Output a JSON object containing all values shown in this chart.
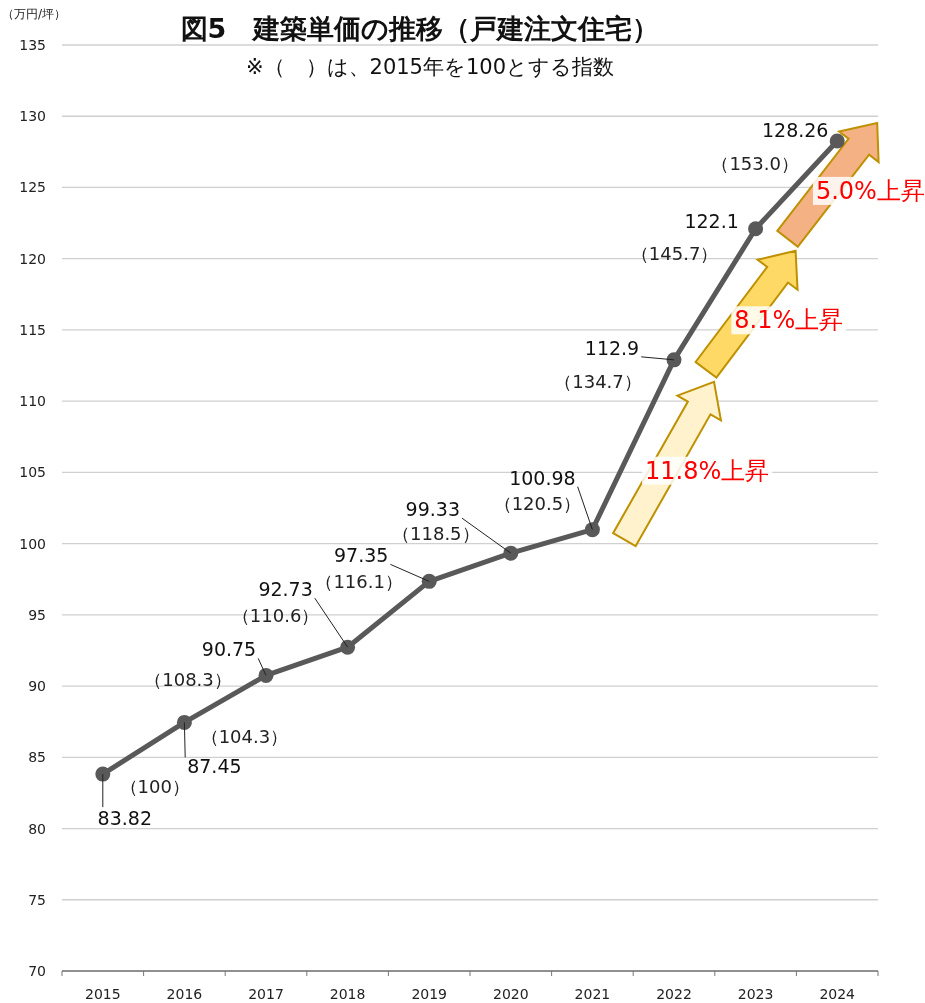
{
  "chart_data": {
    "type": "line",
    "title": "図5　建築単価の推移（戸建注文住宅）",
    "subtitle": "※（　）は、2015年を100とする指数",
    "ylabel": "（万円/坪）",
    "categories": [
      "2015",
      "2016",
      "2017",
      "2018",
      "2019",
      "2020",
      "2021",
      "2022",
      "2023",
      "2024"
    ],
    "values": [
      83.82,
      87.45,
      90.75,
      92.73,
      97.35,
      99.33,
      100.98,
      112.9,
      122.1,
      128.26
    ],
    "color": "#595959",
    "marker": "circle",
    "grid": "y",
    "data_labels": true,
    "ylim": [
      70,
      135
    ],
    "yticks": [
      70,
      75,
      80,
      85,
      90,
      95,
      100,
      105,
      110,
      115,
      120,
      125,
      130,
      135
    ],
    "annotations": [
      {
        "text": "（100）",
        "x": "2015",
        "y": 83.82
      },
      {
        "text": "（104.3）",
        "x": "2016",
        "y": 87.45
      },
      {
        "text": "（108.3）",
        "x": "2017",
        "y": 90.75
      },
      {
        "text": "（110.6）",
        "x": "2018",
        "y": 92.73
      },
      {
        "text": "（116.1）",
        "x": "2019",
        "y": 97.35
      },
      {
        "text": "（118.5）",
        "x": "2020",
        "y": 99.33
      },
      {
        "text": "（120.5）",
        "x": "2021",
        "y": 100.98
      },
      {
        "text": "（134.7）",
        "x": "2022",
        "y": 112.9
      },
      {
        "text": "（145.7）",
        "x": "2023",
        "y": 122.1
      },
      {
        "text": "（153.0）",
        "x": "2024",
        "y": 128.26
      },
      "11.8%上昇",
      "8.1%上昇",
      "5.0%上昇"
    ]
  }
}
